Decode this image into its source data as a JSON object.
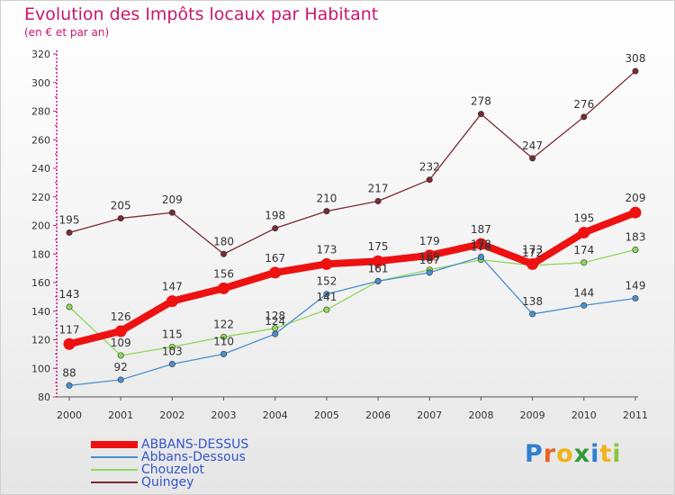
{
  "header": {
    "title": "Evolution des Impôts locaux par Habitant",
    "subtitle": "(en € et par an)"
  },
  "logo": {
    "text": "Proxiti",
    "letters": [
      "P",
      "r",
      "o",
      "x",
      "i",
      "t",
      "i"
    ],
    "letter_colors": [
      "#2f7fd0",
      "#e8641e",
      "#f0b419",
      "#2f9a3a",
      "#2f7fd0",
      "#f0b419",
      "#8cc63f"
    ]
  },
  "chart_data": {
    "type": "line",
    "title": "Evolution des Impôts locaux par Habitant",
    "subtitle": "(en € et par an)",
    "x": [
      "2000",
      "2001",
      "2002",
      "2003",
      "2004",
      "2005",
      "2006",
      "2007",
      "2008",
      "2009",
      "2010",
      "2011"
    ],
    "ylim": [
      80,
      320
    ],
    "yticks": [
      80,
      100,
      120,
      140,
      160,
      180,
      200,
      220,
      240,
      260,
      280,
      300,
      320
    ],
    "grid": false,
    "legend_position": "bottom-left",
    "series": [
      {
        "name": "ABBANS-DESSUS",
        "color": "#ee1111",
        "emphasis": true,
        "values": [
          117,
          126,
          147,
          156,
          167,
          173,
          175,
          179,
          187,
          173,
          195,
          209
        ],
        "labels": [
          "117",
          "126",
          "147",
          "156",
          "167",
          "173",
          "175",
          "179",
          "187",
          "173",
          "195",
          "209"
        ]
      },
      {
        "name": "Abbans-Dessous",
        "color": "#4b8fd1",
        "emphasis": false,
        "values": [
          88,
          92,
          103,
          110,
          124,
          152,
          161,
          167,
          178,
          138,
          144,
          149
        ],
        "labels": [
          "88",
          "92",
          "103",
          "110",
          "124",
          "152",
          "161",
          "167",
          "178",
          "138",
          "144",
          "149"
        ]
      },
      {
        "name": "Chouzelot",
        "color": "#8ed85a",
        "emphasis": false,
        "values": [
          143,
          109,
          115,
          122,
          128,
          141,
          161,
          169,
          176,
          172,
          174,
          183
        ],
        "labels": [
          "143",
          "109",
          "115",
          "122",
          "128",
          "141",
          "161",
          "169",
          "176",
          "172",
          "174",
          "183"
        ]
      },
      {
        "name": "Quingey",
        "color": "#7a2a32",
        "emphasis": false,
        "values": [
          195,
          205,
          209,
          180,
          198,
          210,
          217,
          232,
          278,
          247,
          276,
          308
        ],
        "labels": [
          "195",
          "205",
          "209",
          "180",
          "198",
          "210",
          "217",
          "232",
          "278",
          "247",
          "276",
          "308"
        ]
      }
    ]
  }
}
